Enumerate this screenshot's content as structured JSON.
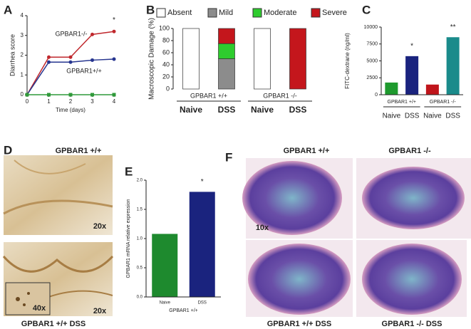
{
  "chart_data": [
    {
      "type": "line",
      "panel": "A",
      "y_label": "Diarrhea score",
      "x_label": "Time (days)",
      "x": [
        0,
        1,
        2,
        3,
        4
      ],
      "xlim": [
        0,
        4
      ],
      "xticks": [
        0,
        1,
        2,
        3,
        4
      ],
      "ylim": [
        0,
        4
      ],
      "yticks": [
        0,
        1,
        2,
        3,
        4
      ],
      "series": [
        {
          "name": "GPBAR1-/-",
          "color": "#c0282d",
          "values": [
            0,
            1.9,
            1.9,
            3.05,
            3.2
          ]
        },
        {
          "name": "GPBAR1+/+",
          "color": "#26358f",
          "values": [
            0,
            1.65,
            1.65,
            1.75,
            1.8
          ]
        },
        {
          "color": "#2f9a3a",
          "values": [
            0,
            0,
            0,
            0,
            0
          ]
        }
      ],
      "significance": [
        null,
        null,
        null,
        null,
        "*"
      ]
    },
    {
      "type": "stacked_bar",
      "panel": "B",
      "y_label": "Macroscopic Damage (%)",
      "categories": [
        "Naive",
        "DSS",
        "Naive",
        "DSS"
      ],
      "groups": [
        "GPBAR1 +/+",
        "GPBAR1 -/-"
      ],
      "ylim": [
        0,
        100
      ],
      "yticks": [
        0,
        20,
        40,
        60,
        80,
        100
      ],
      "series": [
        {
          "name": "Absent",
          "color": "#ffffff",
          "values": [
            100,
            0,
            100,
            0
          ]
        },
        {
          "name": "Mild",
          "color": "#8c8c8c",
          "values": [
            0,
            50,
            0,
            0
          ]
        },
        {
          "name": "Moderate",
          "color": "#2ecc2e",
          "values": [
            0,
            25,
            0,
            0
          ]
        },
        {
          "name": "Severe",
          "color": "#c4161c",
          "values": [
            0,
            25,
            0,
            100
          ]
        }
      ]
    },
    {
      "type": "bar",
      "panel": "C",
      "y_label": "FITC-dextrane (ng/ml)",
      "categories": [
        "Naive",
        "DSS",
        "Naive",
        "DSS"
      ],
      "groups": [
        "GPBAR1 +/+",
        "GPBAR1 -/-"
      ],
      "values": [
        1800,
        5700,
        1500,
        8500
      ],
      "colors": [
        "#1e9a2e",
        "#1a237e",
        "#c0151b",
        "#1a8b8b"
      ],
      "ylim": [
        0,
        10000
      ],
      "yticks": [
        0,
        2500,
        5000,
        7500,
        10000
      ],
      "significance": [
        null,
        "*",
        null,
        "**"
      ]
    },
    {
      "type": "bar",
      "panel": "E",
      "y_label": "GPBAR1 mRNA relative expression",
      "x_label": "GPBAR1 +/+",
      "categories": [
        "Naive",
        "DSS"
      ],
      "values": [
        1.08,
        1.8
      ],
      "colors": [
        "#1e8a2e",
        "#1a237e"
      ],
      "ylim": [
        0,
        2
      ],
      "yticks": [
        {
          "value": 0,
          "label": "0.0"
        },
        0.5,
        {
          "value": 1,
          "label": "1.0"
        },
        1.5,
        {
          "value": 2,
          "label": "2.0"
        }
      ],
      "significance": [
        null,
        "*"
      ]
    }
  ],
  "panel_d": {
    "panel": "D",
    "title": "GPBAR1 +/+",
    "magnification_top": "20x",
    "magnification_bottom": "20x",
    "inset": "40x",
    "caption": "GPBAR1 +/+ DSS"
  },
  "panel_f": {
    "panel": "F",
    "title_left": "GPBAR1 +/+",
    "title_right": "GPBAR1 -/-",
    "magnification": "10x",
    "caption_left": "GPBAR1 +/+ DSS",
    "caption_right": "GPBAR1 -/- DSS"
  }
}
